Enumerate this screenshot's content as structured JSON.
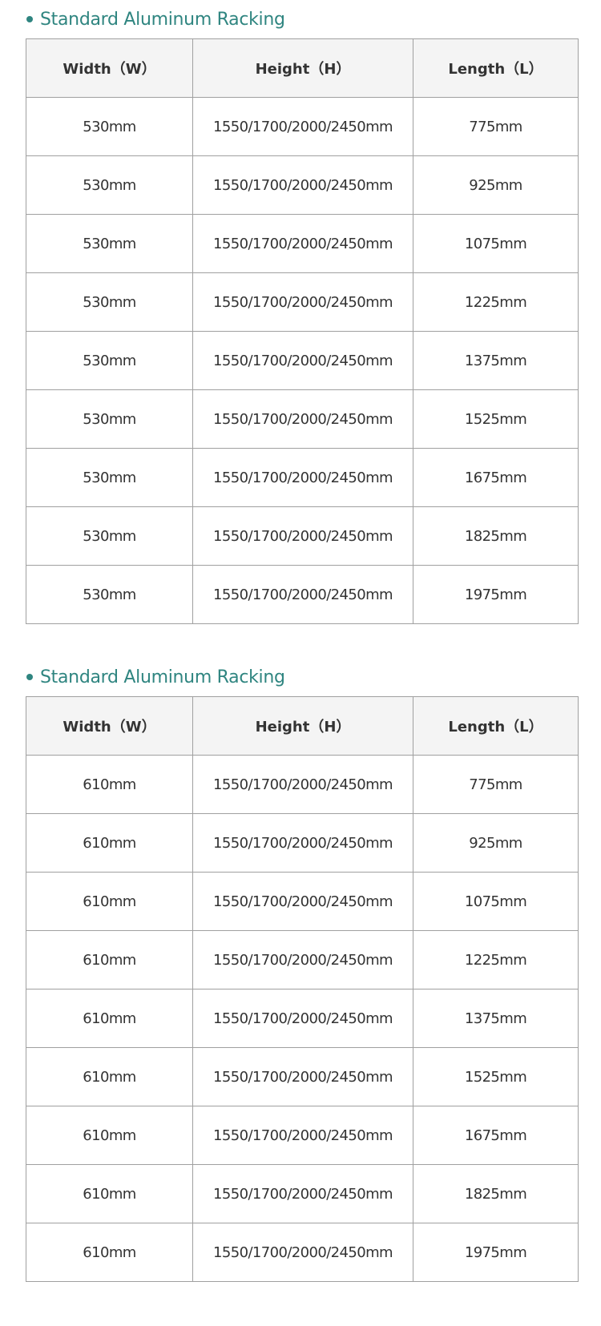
{
  "accent_color": "#2f8580",
  "tables": [
    {
      "title": "Standard Aluminum Racking",
      "headers": [
        "Width（W）",
        "Height（H）",
        "Length（L）"
      ],
      "rows": [
        [
          "530mm",
          "1550/1700/2000/2450mm",
          "775mm"
        ],
        [
          "530mm",
          "1550/1700/2000/2450mm",
          "925mm"
        ],
        [
          "530mm",
          "1550/1700/2000/2450mm",
          "1075mm"
        ],
        [
          "530mm",
          "1550/1700/2000/2450mm",
          "1225mm"
        ],
        [
          "530mm",
          "1550/1700/2000/2450mm",
          "1375mm"
        ],
        [
          "530mm",
          "1550/1700/2000/2450mm",
          "1525mm"
        ],
        [
          "530mm",
          "1550/1700/2000/2450mm",
          "1675mm"
        ],
        [
          "530mm",
          "1550/1700/2000/2450mm",
          "1825mm"
        ],
        [
          "530mm",
          "1550/1700/2000/2450mm",
          "1975mm"
        ]
      ]
    },
    {
      "title": "Standard Aluminum Racking",
      "headers": [
        "Width（W）",
        "Height（H）",
        "Length（L）"
      ],
      "rows": [
        [
          "610mm",
          "1550/1700/2000/2450mm",
          "775mm"
        ],
        [
          "610mm",
          "1550/1700/2000/2450mm",
          "925mm"
        ],
        [
          "610mm",
          "1550/1700/2000/2450mm",
          "1075mm"
        ],
        [
          "610mm",
          "1550/1700/2000/2450mm",
          "1225mm"
        ],
        [
          "610mm",
          "1550/1700/2000/2450mm",
          "1375mm"
        ],
        [
          "610mm",
          "1550/1700/2000/2450mm",
          "1525mm"
        ],
        [
          "610mm",
          "1550/1700/2000/2450mm",
          "1675mm"
        ],
        [
          "610mm",
          "1550/1700/2000/2450mm",
          "1825mm"
        ],
        [
          "610mm",
          "1550/1700/2000/2450mm",
          "1975mm"
        ]
      ]
    }
  ]
}
